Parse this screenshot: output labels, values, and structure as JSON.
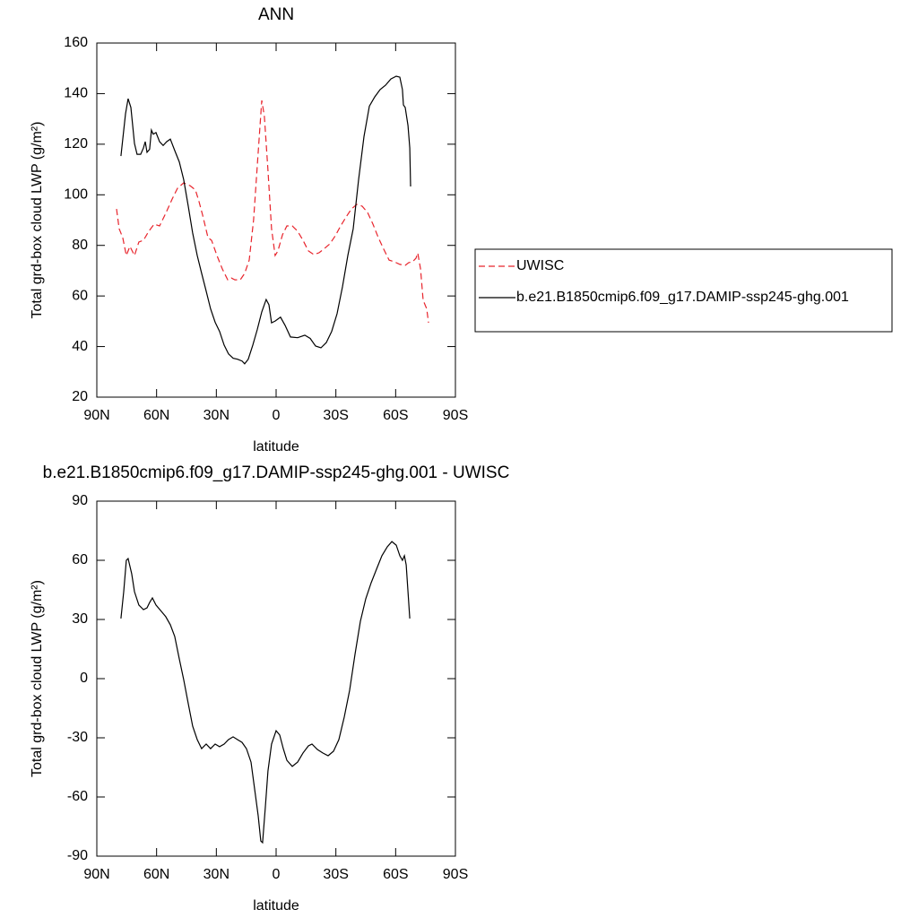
{
  "chart_data": [
    {
      "type": "line",
      "title": "ANN",
      "xlabel": "latitude",
      "ylabel": "Total grd-box cloud LWP (g/m²)",
      "xlim": [
        90,
        -90
      ],
      "xticks": [
        {
          "value": 90,
          "label": "90N"
        },
        {
          "value": 60,
          "label": "60N"
        },
        {
          "value": 30,
          "label": "30N"
        },
        0,
        {
          "value": -30,
          "label": "30S"
        },
        {
          "value": -60,
          "label": "60S"
        },
        {
          "value": -90,
          "label": "90S"
        }
      ],
      "ylim": [
        20,
        160
      ],
      "yticks": [
        20,
        40,
        60,
        80,
        100,
        120,
        140,
        160
      ],
      "legend": "right",
      "series": [
        {
          "name": "UWISC",
          "color": "#e8242c",
          "line_style": "dashed",
          "x": [
            80.1,
            78.8,
            77,
            75.2,
            73.4,
            71.1,
            68.9,
            66.6,
            63.9,
            61.2,
            58.5,
            55.4,
            52.2,
            49.5,
            46.4,
            43.2,
            40.5,
            38.7,
            36.9,
            34.2,
            32.4,
            29.7,
            27,
            24.3,
            22.5,
            20.7,
            18,
            15.8,
            13.5,
            11.3,
            9,
            7.2,
            5.9,
            4.1,
            2.3,
            0.5,
            -0.9,
            -3.2,
            -5.4,
            -8.1,
            -10.8,
            -13.5,
            -16.2,
            -18.9,
            -21.6,
            -24.3,
            -27,
            -29.7,
            -32.4,
            -35.1,
            -37.8,
            -40.5,
            -43.2,
            -45.9,
            -48.6,
            -51.3,
            -54,
            -56.7,
            -59.4,
            -62.1,
            -64.8,
            -66.6,
            -68.4,
            -70.2,
            -71.1,
            -72.5,
            -73.8,
            -75.6,
            -76.5
          ],
          "values": [
            94.4,
            86.6,
            83.1,
            76,
            79.6,
            76,
            81.3,
            82,
            85.6,
            88.4,
            87.7,
            92.7,
            98.3,
            102.6,
            104.7,
            103.6,
            101.9,
            97.3,
            92,
            83.1,
            82,
            76,
            70.7,
            66.4,
            67.1,
            66.4,
            66.4,
            68.9,
            74.2,
            90.2,
            116.8,
            137.3,
            131,
            109.7,
            86.6,
            76,
            77.8,
            84.2,
            87.7,
            87.7,
            85.6,
            82,
            77.8,
            76.4,
            77.1,
            78.8,
            80.6,
            83.8,
            87.7,
            91.2,
            94.4,
            96.2,
            95.5,
            93,
            88.4,
            83.1,
            78.5,
            74.2,
            73.5,
            72.5,
            72.1,
            73.2,
            73.5,
            74.9,
            77,
            70.7,
            58.3,
            54.9,
            49.4
          ]
        },
        {
          "name": "b.e21.B1850cmip6.f09_g17.DAMIP-ssp245-ghg.001",
          "color": "#000000",
          "line_style": "solid",
          "x": [
            77.9,
            75.6,
            74.3,
            72.9,
            71.1,
            69.8,
            68,
            66.6,
            65.7,
            64.8,
            63.5,
            62.6,
            61.7,
            60.3,
            58.5,
            56.7,
            54.9,
            53.1,
            50.9,
            48.6,
            46.4,
            44.1,
            41.9,
            39.6,
            37.4,
            35.1,
            32.9,
            30.6,
            28.4,
            26.1,
            23.9,
            21.6,
            19.4,
            17.1,
            15.8,
            14,
            11.7,
            9.5,
            7.2,
            5,
            3.6,
            2.3,
            0.5,
            -2.2,
            -4.5,
            -7.2,
            -10.8,
            -14.4,
            -17.1,
            -19.8,
            -22.5,
            -25.2,
            -27.9,
            -30.6,
            -33.3,
            -36,
            -38.7,
            -41.4,
            -44.1,
            -46.8,
            -49.5,
            -52.2,
            -54.9,
            -57.6,
            -60.3,
            -62.1,
            -63.4,
            -63.9,
            -64.8,
            -66.2,
            -67.1,
            -67.5
          ],
          "values": [
            115.3,
            132,
            138,
            134.5,
            120.3,
            116,
            116,
            118.5,
            121,
            116.8,
            118,
            125.6,
            124,
            124.6,
            121,
            119.5,
            121,
            122,
            117.5,
            113,
            106,
            95.5,
            84.9,
            76,
            69,
            61.9,
            54.9,
            49.6,
            46,
            40.6,
            37.1,
            35.4,
            35,
            34.3,
            33.2,
            35,
            40.6,
            46.6,
            53.7,
            58.6,
            56.5,
            49.4,
            50.1,
            51.6,
            48.4,
            43.8,
            43.5,
            44.5,
            43.2,
            40.2,
            39.5,
            41.6,
            46,
            53,
            63.6,
            76,
            86.6,
            106,
            123,
            135,
            138.7,
            141.6,
            143.3,
            145.8,
            146.9,
            146.5,
            141.6,
            135.5,
            134.5,
            127.4,
            118.5,
            103.3
          ]
        }
      ]
    },
    {
      "type": "line",
      "title": "b.e21.B1850cmip6.f09_g17.DAMIP-ssp245-ghg.001 - UWISC",
      "xlabel": "latitude",
      "ylabel": "Total grd-box cloud LWP (g/m²)",
      "xlim": [
        90,
        -90
      ],
      "xticks": [
        {
          "value": 90,
          "label": "90N"
        },
        {
          "value": 60,
          "label": "60N"
        },
        {
          "value": 30,
          "label": "30N"
        },
        0,
        {
          "value": -30,
          "label": "30S"
        },
        {
          "value": -60,
          "label": "60S"
        },
        {
          "value": -90,
          "label": "90S"
        }
      ],
      "ylim": [
        -90,
        90
      ],
      "yticks": [
        -90,
        -60,
        -30,
        0,
        30,
        60,
        90
      ],
      "series": [
        {
          "color": "#000000",
          "line_style": "solid",
          "x": [
            77.9,
            76.5,
            75.2,
            74.3,
            72.5,
            71.1,
            68.9,
            66.6,
            64.8,
            63.5,
            62.1,
            60.3,
            57.6,
            55.4,
            53.1,
            50.9,
            48.6,
            46.4,
            44.1,
            41.9,
            39.6,
            37.4,
            35.1,
            32.9,
            30.6,
            28.4,
            26.1,
            23.9,
            21.6,
            19.4,
            17.1,
            14.9,
            12.6,
            10.8,
            9,
            7.7,
            6.8,
            5.4,
            4.1,
            2.3,
            0,
            -1.8,
            -3.6,
            -5.4,
            -8.1,
            -10.8,
            -13.5,
            -16.2,
            -18,
            -20.7,
            -23.4,
            -26.1,
            -28.8,
            -31.5,
            -34.2,
            -36.9,
            -39.6,
            -42.3,
            -45,
            -47.7,
            -50.4,
            -53.1,
            -55.8,
            -58.1,
            -60.3,
            -62.1,
            -63.4,
            -64.4,
            -65.3,
            -66.2,
            -67.1
          ],
          "values": [
            30.5,
            44.1,
            60,
            60.9,
            53.2,
            44.1,
            37.3,
            35,
            35.9,
            38.6,
            40.9,
            37.3,
            34.1,
            31.4,
            27.3,
            21.4,
            10,
            -0.5,
            -12.7,
            -24.1,
            -30.9,
            -35.5,
            -33.2,
            -35.5,
            -33.2,
            -34.5,
            -33.2,
            -30.9,
            -29.5,
            -30.9,
            -32.3,
            -35.5,
            -42.3,
            -55.9,
            -69.5,
            -82.3,
            -83.2,
            -65,
            -46.8,
            -33.2,
            -26.4,
            -28.6,
            -35.5,
            -41.4,
            -44.5,
            -42.3,
            -37.7,
            -34.1,
            -33.2,
            -35.9,
            -37.7,
            -39.1,
            -36.8,
            -30.9,
            -19.5,
            -5.9,
            12.3,
            29.1,
            40.5,
            48.6,
            55.5,
            62.3,
            66.8,
            69.5,
            67.7,
            62.3,
            60,
            62.3,
            57.7,
            44.1,
            30.5
          ]
        }
      ]
    }
  ]
}
